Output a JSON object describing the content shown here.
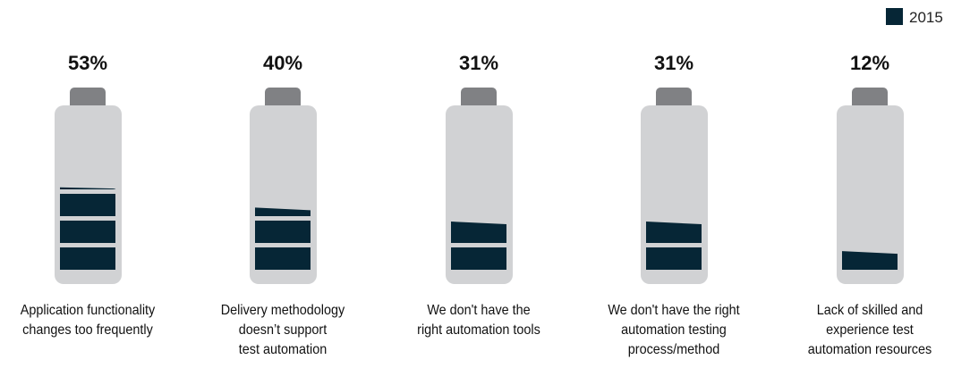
{
  "chart_data": {
    "type": "bar",
    "style": "battery-infographic",
    "categories": [
      [
        "Application functionality",
        "changes too frequently"
      ],
      [
        "Delivery methodology",
        "doesn’t support",
        "test automation"
      ],
      [
        "We don't have the",
        "right automation tools"
      ],
      [
        "We don't have the right",
        "automation testing",
        "process/method"
      ],
      [
        "Lack of skilled and",
        "experience test",
        "automation resources"
      ]
    ],
    "series": [
      {
        "name": "2015",
        "values": [
          53,
          40,
          31,
          31,
          12
        ]
      }
    ],
    "data_labels": [
      "53%",
      "40%",
      "31%",
      "31%",
      "12%"
    ],
    "ylim": [
      0,
      100
    ],
    "legend": {
      "position": "top-right",
      "entries": [
        "2015"
      ]
    },
    "grid": false,
    "colors": {
      "fill": "#062636",
      "battery_body": "#d1d2d4",
      "battery_cap": "#808184"
    }
  }
}
